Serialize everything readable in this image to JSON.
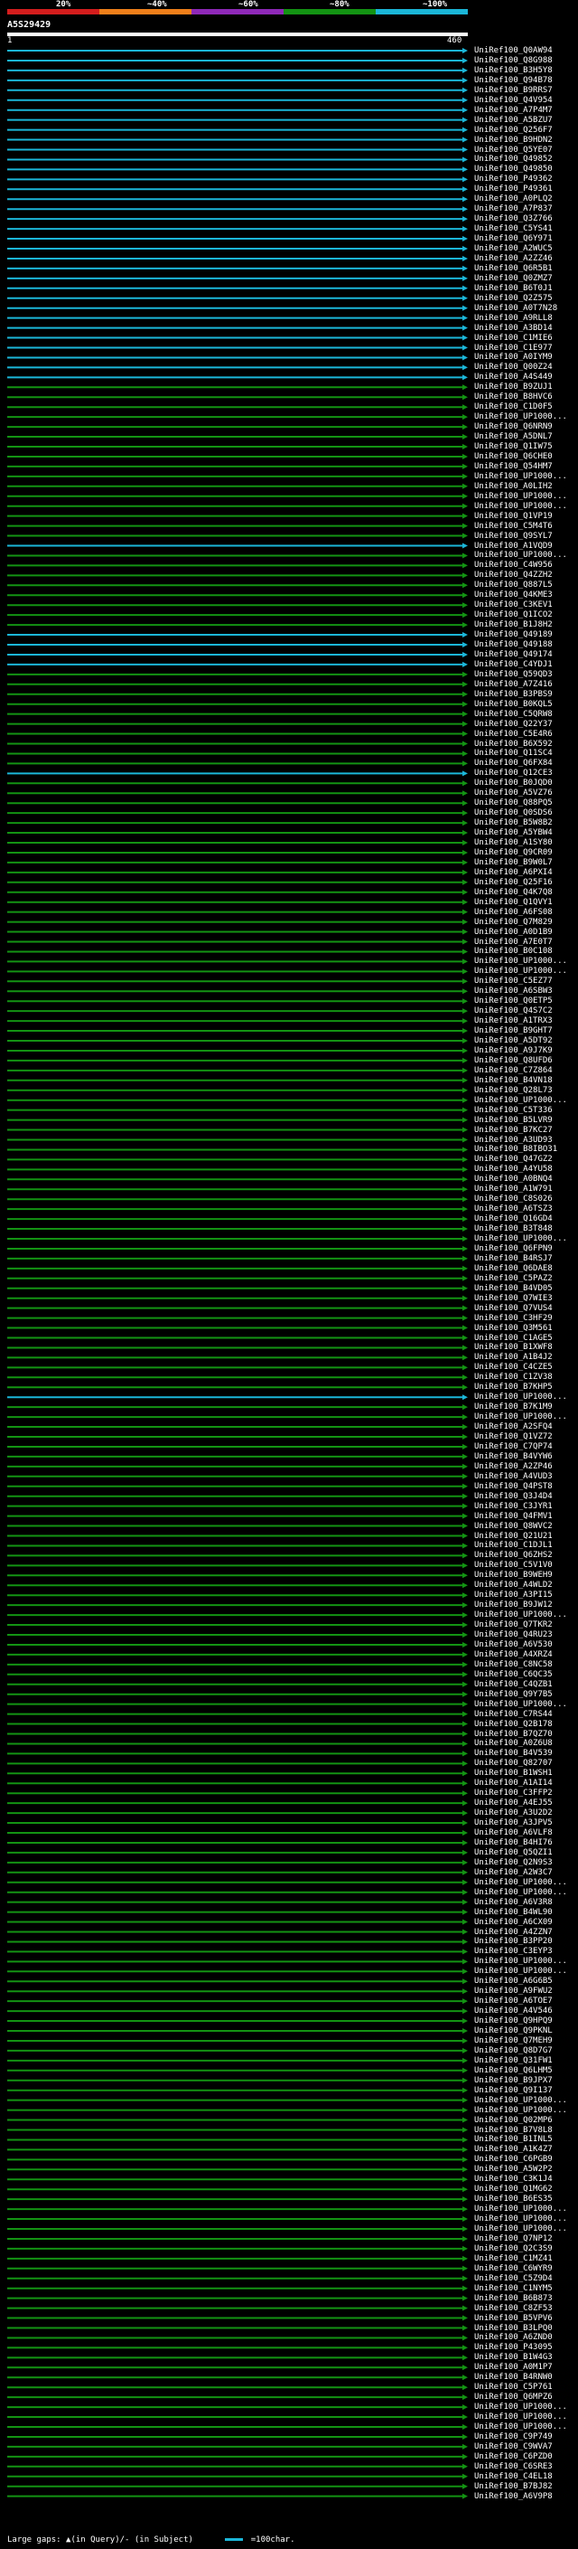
{
  "legend": {
    "labels": [
      "20%",
      "~40%",
      "~60%",
      "~80%",
      "~100%"
    ],
    "colors": [
      "#d41d1d",
      "#ef7f1a",
      "#8e28b7",
      "#139313",
      "#1bb6d8"
    ]
  },
  "query": {
    "id": "A5S29429",
    "start": "1",
    "end": "460"
  },
  "footer": {
    "gaps": "Large gaps: ▲(in Query)/- (in Subject)",
    "scale": "=100char."
  },
  "hits": [
    {
      "label": "UniRef100_Q0AW94",
      "identity": 100
    },
    {
      "label": "UniRef100_Q8G988",
      "identity": 100
    },
    {
      "label": "UniRef100_B3H5Y8",
      "identity": 100
    },
    {
      "label": "UniRef100_Q94B78",
      "identity": 100
    },
    {
      "label": "UniRef100_B9RRS7",
      "identity": 100
    },
    {
      "label": "UniRef100_Q4V954",
      "identity": 100
    },
    {
      "label": "UniRef100_A7P4M7",
      "identity": 100
    },
    {
      "label": "UniRef100_A5BZU7",
      "identity": 100
    },
    {
      "label": "UniRef100_Q256F7",
      "identity": 100
    },
    {
      "label": "UniRef100_B9HDN2",
      "identity": 100
    },
    {
      "label": "UniRef100_Q5YE07",
      "identity": 100
    },
    {
      "label": "UniRef100_Q49852",
      "identity": 100
    },
    {
      "label": "UniRef100_Q49850",
      "identity": 100
    },
    {
      "label": "UniRef100_P49362",
      "identity": 100
    },
    {
      "label": "UniRef100_P49361",
      "identity": 100
    },
    {
      "label": "UniRef100_A0PLQ2",
      "identity": 100
    },
    {
      "label": "UniRef100_A7P837",
      "identity": 100
    },
    {
      "label": "UniRef100_Q3Z766",
      "identity": 100
    },
    {
      "label": "UniRef100_C5YS41",
      "identity": 100
    },
    {
      "label": "UniRef100_Q6Y971",
      "identity": 100
    },
    {
      "label": "UniRef100_A2WUC5",
      "identity": 100
    },
    {
      "label": "UniRef100_A2ZZ46",
      "identity": 100
    },
    {
      "label": "UniRef100_Q6R5B1",
      "identity": 100
    },
    {
      "label": "UniRef100_Q0ZMZ7",
      "identity": 100
    },
    {
      "label": "UniRef100_B6T0J1",
      "identity": 100
    },
    {
      "label": "UniRef100_Q2Z575",
      "identity": 100
    },
    {
      "label": "UniRef100_A0T7N28",
      "identity": 100
    },
    {
      "label": "UniRef100_A9RLL8",
      "identity": 100
    },
    {
      "label": "UniRef100_A3BD14",
      "identity": 100
    },
    {
      "label": "UniRef100_C1MIE6",
      "identity": 100
    },
    {
      "label": "UniRef100_C1E977",
      "identity": 100
    },
    {
      "label": "UniRef100_A0IYM9",
      "identity": 100
    },
    {
      "label": "UniRef100_Q00Z24",
      "identity": 100
    },
    {
      "label": "UniRef100_A4S449",
      "identity": 100
    },
    {
      "label": "UniRef100_B9ZUJ1",
      "identity": 80
    },
    {
      "label": "UniRef100_B8HVC6",
      "identity": 80
    },
    {
      "label": "UniRef100_C1D0F5",
      "identity": 80
    },
    {
      "label": "UniRef100_UP1000...",
      "identity": 80
    },
    {
      "label": "UniRef100_Q6NRN9",
      "identity": 80
    },
    {
      "label": "UniRef100_A5DNL7",
      "identity": 80
    },
    {
      "label": "UniRef100_Q1IW75",
      "identity": 80
    },
    {
      "label": "UniRef100_Q6CHE0",
      "identity": 80
    },
    {
      "label": "UniRef100_Q54HM7",
      "identity": 80
    },
    {
      "label": "UniRef100_UP1000...",
      "identity": 80
    },
    {
      "label": "UniRef100_A0LIH2",
      "identity": 80
    },
    {
      "label": "UniRef100_UP1000...",
      "identity": 80
    },
    {
      "label": "UniRef100_UP1000...",
      "identity": 80
    },
    {
      "label": "UniRef100_Q1VP19",
      "identity": 80
    },
    {
      "label": "UniRef100_C5M4T6",
      "identity": 80
    },
    {
      "label": "UniRef100_Q9SYL7",
      "identity": 80
    },
    {
      "label": "UniRef100_A1VQD9",
      "identity": 100
    },
    {
      "label": "UniRef100_UP1000...",
      "identity": 80
    },
    {
      "label": "UniRef100_C4W956",
      "identity": 80
    },
    {
      "label": "UniRef100_Q4ZZH2",
      "identity": 80
    },
    {
      "label": "UniRef100_Q887L5",
      "identity": 80
    },
    {
      "label": "UniRef100_Q4KME3",
      "identity": 80
    },
    {
      "label": "UniRef100_C3KEV1",
      "identity": 80
    },
    {
      "label": "UniRef100_Q1ICO2",
      "identity": 80
    },
    {
      "label": "UniRef100_B1J8H2",
      "identity": 80
    },
    {
      "label": "UniRef100_Q49189",
      "identity": 100
    },
    {
      "label": "UniRef100_Q49188",
      "identity": 100
    },
    {
      "label": "UniRef100_Q49174",
      "identity": 100
    },
    {
      "label": "UniRef100_C4YDJ1",
      "identity": 100
    },
    {
      "label": "UniRef100_Q59QD3",
      "identity": 80
    },
    {
      "label": "UniRef100_A7Z416",
      "identity": 80
    },
    {
      "label": "UniRef100_B3PBS9",
      "identity": 80
    },
    {
      "label": "UniRef100_B0KQL5",
      "identity": 80
    },
    {
      "label": "UniRef100_C5QRW8",
      "identity": 80
    },
    {
      "label": "UniRef100_Q22Y37",
      "identity": 80
    },
    {
      "label": "UniRef100_C5E4R6",
      "identity": 80
    },
    {
      "label": "UniRef100_B6X592",
      "identity": 80
    },
    {
      "label": "UniRef100_Q11SC4",
      "identity": 80
    },
    {
      "label": "UniRef100_Q6FX84",
      "identity": 80
    },
    {
      "label": "UniRef100_Q12CE3",
      "identity": 100
    },
    {
      "label": "UniRef100_B0JQD0",
      "identity": 80
    },
    {
      "label": "UniRef100_A5VZ76",
      "identity": 80
    },
    {
      "label": "UniRef100_Q88PQ5",
      "identity": 80
    },
    {
      "label": "UniRef100_Q0SDS6",
      "identity": 80
    },
    {
      "label": "UniRef100_B5W8B2",
      "identity": 80
    },
    {
      "label": "UniRef100_A5YBW4",
      "identity": 80
    },
    {
      "label": "UniRef100_A1SY80",
      "identity": 80
    },
    {
      "label": "UniRef100_Q9CR09",
      "identity": 80
    },
    {
      "label": "UniRef100_B9W0L7",
      "identity": 80
    },
    {
      "label": "UniRef100_A6PXI4",
      "identity": 80
    },
    {
      "label": "UniRef100_Q25F16",
      "identity": 80
    },
    {
      "label": "UniRef100_Q4K7Q8",
      "identity": 80
    },
    {
      "label": "UniRef100_Q1QVY1",
      "identity": 80
    },
    {
      "label": "UniRef100_A6FS08",
      "identity": 80
    },
    {
      "label": "UniRef100_Q7M829",
      "identity": 80
    },
    {
      "label": "UniRef100_A0D1B9",
      "identity": 80
    },
    {
      "label": "UniRef100_A7E0T7",
      "identity": 80
    },
    {
      "label": "UniRef100_B0C108",
      "identity": 80
    },
    {
      "label": "UniRef100_UP1000...",
      "identity": 80
    },
    {
      "label": "UniRef100_UP1000...",
      "identity": 80
    },
    {
      "label": "UniRef100_C5EZ77",
      "identity": 80
    },
    {
      "label": "UniRef100_A6SBW3",
      "identity": 80
    },
    {
      "label": "UniRef100_Q0ETP5",
      "identity": 80
    },
    {
      "label": "UniRef100_Q4S7C2",
      "identity": 80
    },
    {
      "label": "UniRef100_A1TRX3",
      "identity": 80
    },
    {
      "label": "UniRef100_B9GHT7",
      "identity": 80
    },
    {
      "label": "UniRef100_A5DT92",
      "identity": 80
    },
    {
      "label": "UniRef100_A9J7K9",
      "identity": 80
    },
    {
      "label": "UniRef100_Q8UFD6",
      "identity": 80
    },
    {
      "label": "UniRef100_C7Z864",
      "identity": 80
    },
    {
      "label": "UniRef100_B4VN18",
      "identity": 80
    },
    {
      "label": "UniRef100_Q28L73",
      "identity": 80
    },
    {
      "label": "UniRef100_UP1000...",
      "identity": 80
    },
    {
      "label": "UniRef100_C5T336",
      "identity": 80
    },
    {
      "label": "UniRef100_B5LVR9",
      "identity": 80
    },
    {
      "label": "UniRef100_B7KC27",
      "identity": 80
    },
    {
      "label": "UniRef100_A3UD93",
      "identity": 80
    },
    {
      "label": "UniRef100_B8IBO31",
      "identity": 80
    },
    {
      "label": "UniRef100_Q47GZ2",
      "identity": 80
    },
    {
      "label": "UniRef100_A4YU58",
      "identity": 80
    },
    {
      "label": "UniRef100_A0BNQ4",
      "identity": 80
    },
    {
      "label": "UniRef100_A1W791",
      "identity": 80
    },
    {
      "label": "UniRef100_C8S026",
      "identity": 80
    },
    {
      "label": "UniRef100_A6TSZ3",
      "identity": 80
    },
    {
      "label": "UniRef100_Q16GD4",
      "identity": 80
    },
    {
      "label": "UniRef100_B3T848",
      "identity": 80
    },
    {
      "label": "UniRef100_UP1000...",
      "identity": 80
    },
    {
      "label": "UniRef100_Q6FPN9",
      "identity": 80
    },
    {
      "label": "UniRef100_B4RSJ7",
      "identity": 80
    },
    {
      "label": "UniRef100_Q6DAE8",
      "identity": 80
    },
    {
      "label": "UniRef100_C5PAZ2",
      "identity": 80
    },
    {
      "label": "UniRef100_B4VD05",
      "identity": 80
    },
    {
      "label": "UniRef100_Q7WIE3",
      "identity": 80
    },
    {
      "label": "UniRef100_Q7VUS4",
      "identity": 80
    },
    {
      "label": "UniRef100_C3HF29",
      "identity": 80
    },
    {
      "label": "UniRef100_Q3M561",
      "identity": 80
    },
    {
      "label": "UniRef100_C1AGE5",
      "identity": 80
    },
    {
      "label": "UniRef100_B1XWF8",
      "identity": 80
    },
    {
      "label": "UniRef100_A1B4J2",
      "identity": 80
    },
    {
      "label": "UniRef100_C4CZE5",
      "identity": 80
    },
    {
      "label": "UniRef100_C1ZV38",
      "identity": 80
    },
    {
      "label": "UniRef100_B7KHP5",
      "identity": 80
    },
    {
      "label": "UniRef100_UP1000...",
      "identity": 100
    },
    {
      "label": "UniRef100_B7K1M9",
      "identity": 80
    },
    {
      "label": "UniRef100_UP1000...",
      "identity": 80
    },
    {
      "label": "UniRef100_A2SFQ4",
      "identity": 80
    },
    {
      "label": "UniRef100_Q1VZ72",
      "identity": 80
    },
    {
      "label": "UniRef100_C7QP74",
      "identity": 80
    },
    {
      "label": "UniRef100_B4VYW6",
      "identity": 80
    },
    {
      "label": "UniRef100_A2ZP46",
      "identity": 80
    },
    {
      "label": "UniRef100_A4VUD3",
      "identity": 80
    },
    {
      "label": "UniRef100_Q4PST8",
      "identity": 80
    },
    {
      "label": "UniRef100_Q3J4D4",
      "identity": 80
    },
    {
      "label": "UniRef100_C3JYR1",
      "identity": 80
    },
    {
      "label": "UniRef100_Q4FMV1",
      "identity": 80
    },
    {
      "label": "UniRef100_Q8WVC2",
      "identity": 80
    },
    {
      "label": "UniRef100_Q21U21",
      "identity": 80
    },
    {
      "label": "UniRef100_C1DJL1",
      "identity": 80
    },
    {
      "label": "UniRef100_Q6ZHS2",
      "identity": 80
    },
    {
      "label": "UniRef100_C5V1V0",
      "identity": 80
    },
    {
      "label": "UniRef100_B9WEH9",
      "identity": 80
    },
    {
      "label": "UniRef100_A4WLD2",
      "identity": 80
    },
    {
      "label": "UniRef100_A3PI15",
      "identity": 80
    },
    {
      "label": "UniRef100_B9JW12",
      "identity": 80
    },
    {
      "label": "UniRef100_UP1000...",
      "identity": 80
    },
    {
      "label": "UniRef100_Q7TKR2",
      "identity": 80
    },
    {
      "label": "UniRef100_Q4RU23",
      "identity": 80
    },
    {
      "label": "UniRef100_A6V530",
      "identity": 80
    },
    {
      "label": "UniRef100_A4XRZ4",
      "identity": 80
    },
    {
      "label": "UniRef100_C8NC58",
      "identity": 80
    },
    {
      "label": "UniRef100_C6QC35",
      "identity": 80
    },
    {
      "label": "UniRef100_C4QZB1",
      "identity": 80
    },
    {
      "label": "UniRef100_Q9Y7B5",
      "identity": 80
    },
    {
      "label": "UniRef100_UP1000...",
      "identity": 80
    },
    {
      "label": "UniRef100_C7RS44",
      "identity": 80
    },
    {
      "label": "UniRef100_Q2B178",
      "identity": 80
    },
    {
      "label": "UniRef100_B7QZ70",
      "identity": 80
    },
    {
      "label": "UniRef100_A0Z6U8",
      "identity": 80
    },
    {
      "label": "UniRef100_B4V539",
      "identity": 80
    },
    {
      "label": "UniRef100_Q82707",
      "identity": 80
    },
    {
      "label": "UniRef100_B1WSH1",
      "identity": 80
    },
    {
      "label": "UniRef100_A1AI14",
      "identity": 80
    },
    {
      "label": "UniRef100_C3FFP2",
      "identity": 80
    },
    {
      "label": "UniRef100_A4EJ55",
      "identity": 80
    },
    {
      "label": "UniRef100_A3U2D2",
      "identity": 80
    },
    {
      "label": "UniRef100_A3JPV5",
      "identity": 80
    },
    {
      "label": "UniRef100_A6VLF8",
      "identity": 80
    },
    {
      "label": "UniRef100_B4HI76",
      "identity": 80
    },
    {
      "label": "UniRef100_Q5QZI1",
      "identity": 80
    },
    {
      "label": "UniRef100_Q2N9S3",
      "identity": 80
    },
    {
      "label": "UniRef100_A2W3C7",
      "identity": 80
    },
    {
      "label": "UniRef100_UP1000...",
      "identity": 80
    },
    {
      "label": "UniRef100_UP1000...",
      "identity": 80
    },
    {
      "label": "UniRef100_A6V3R8",
      "identity": 80
    },
    {
      "label": "UniRef100_B4WL90",
      "identity": 80
    },
    {
      "label": "UniRef100_A6CX09",
      "identity": 80
    },
    {
      "label": "UniRef100_A4ZZN7",
      "identity": 80
    },
    {
      "label": "UniRef100_B3PP20",
      "identity": 80
    },
    {
      "label": "UniRef100_C3EYP3",
      "identity": 80
    },
    {
      "label": "UniRef100_UP1000...",
      "identity": 80
    },
    {
      "label": "UniRef100_UP1000...",
      "identity": 80
    },
    {
      "label": "UniRef100_A6G6B5",
      "identity": 80
    },
    {
      "label": "UniRef100_A9FWU2",
      "identity": 80
    },
    {
      "label": "UniRef100_A6TOE7",
      "identity": 80
    },
    {
      "label": "UniRef100_A4V546",
      "identity": 80
    },
    {
      "label": "UniRef100_Q9HPQ9",
      "identity": 80
    },
    {
      "label": "UniRef100_Q9PKNL",
      "identity": 80
    },
    {
      "label": "UniRef100_Q7MEH9",
      "identity": 80
    },
    {
      "label": "UniRef100_Q8D7G7",
      "identity": 80
    },
    {
      "label": "UniRef100_Q31FW1",
      "identity": 80
    },
    {
      "label": "UniRef100_Q6LHM5",
      "identity": 80
    },
    {
      "label": "UniRef100_B9JPX7",
      "identity": 80
    },
    {
      "label": "UniRef100_Q9I137",
      "identity": 80
    },
    {
      "label": "UniRef100_UP1000...",
      "identity": 80
    },
    {
      "label": "UniRef100_UP1000...",
      "identity": 80
    },
    {
      "label": "UniRef100_Q02MP6",
      "identity": 80
    },
    {
      "label": "UniRef100_B7V8L8",
      "identity": 80
    },
    {
      "label": "UniRef100_B1INL5",
      "identity": 80
    },
    {
      "label": "UniRef100_A1K4Z7",
      "identity": 80
    },
    {
      "label": "UniRef100_C6PGB9",
      "identity": 80
    },
    {
      "label": "UniRef100_A5W2P2",
      "identity": 80
    },
    {
      "label": "UniRef100_C3K1J4",
      "identity": 80
    },
    {
      "label": "UniRef100_Q1MG62",
      "identity": 80
    },
    {
      "label": "UniRef100_B6ES35",
      "identity": 80
    },
    {
      "label": "UniRef100_UP1000...",
      "identity": 80
    },
    {
      "label": "UniRef100_UP1000...",
      "identity": 80
    },
    {
      "label": "UniRef100_UP1000...",
      "identity": 80
    },
    {
      "label": "UniRef100_Q7NP12",
      "identity": 80
    },
    {
      "label": "UniRef100_Q2C3S9",
      "identity": 80
    },
    {
      "label": "UniRef100_C1MZ41",
      "identity": 80
    },
    {
      "label": "UniRef100_C6WYR9",
      "identity": 80
    },
    {
      "label": "UniRef100_C5Z9D4",
      "identity": 80
    },
    {
      "label": "UniRef100_C1NYM5",
      "identity": 80
    },
    {
      "label": "UniRef100_B6B873",
      "identity": 80
    },
    {
      "label": "UniRef100_C8ZF53",
      "identity": 80
    },
    {
      "label": "UniRef100_B5VPV6",
      "identity": 80
    },
    {
      "label": "UniRef100_B3LPQ0",
      "identity": 80
    },
    {
      "label": "UniRef100_A6ZND0",
      "identity": 80
    },
    {
      "label": "UniRef100_P43095",
      "identity": 80
    },
    {
      "label": "UniRef100_B1W4G3",
      "identity": 80
    },
    {
      "label": "UniRef100_A0M1P7",
      "identity": 80
    },
    {
      "label": "UniRef100_B4RNW0",
      "identity": 80
    },
    {
      "label": "UniRef100_C5P761",
      "identity": 80
    },
    {
      "label": "UniRef100_Q6MPZ6",
      "identity": 80
    },
    {
      "label": "UniRef100_UP1000...",
      "identity": 80
    },
    {
      "label": "UniRef100_UP1000...",
      "identity": 80
    },
    {
      "label": "UniRef100_UP1000...",
      "identity": 80
    },
    {
      "label": "UniRef100_C9P749",
      "identity": 80
    },
    {
      "label": "UniRef100_C9WVA7",
      "identity": 80
    },
    {
      "label": "UniRef100_C6PZD0",
      "identity": 80
    },
    {
      "label": "UniRef100_C6SRE3",
      "identity": 80
    },
    {
      "label": "UniRef100_C4EL18",
      "identity": 80
    },
    {
      "label": "UniRef100_B7BJ82",
      "identity": 80
    },
    {
      "label": "UniRef100_A6V9P8",
      "identity": 80
    }
  ]
}
